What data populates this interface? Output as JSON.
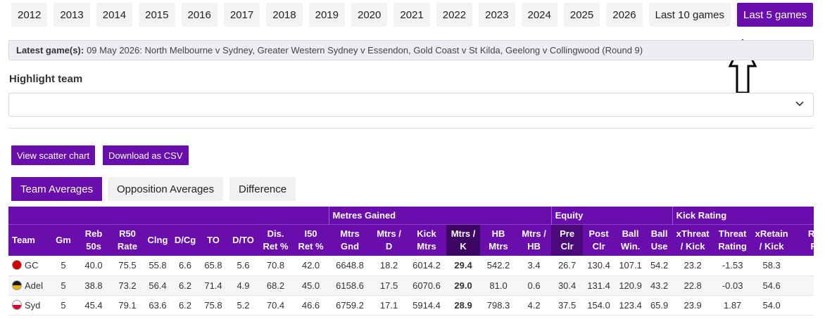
{
  "seasons": [
    "2012",
    "2013",
    "2014",
    "2015",
    "2016",
    "2017",
    "2018",
    "2019",
    "2020",
    "2021",
    "2022",
    "2023",
    "2024",
    "2025",
    "2026",
    "Last 10 games",
    "Last 5 games"
  ],
  "active_season": "Last 5 games",
  "latest": {
    "label": "Latest game(s):",
    "text": "09 May 2026: North Melbourne v Sydney, Greater Western Sydney v Essendon, Gold Coast v St Kilda, Geelong v Collingwood (Round 9)"
  },
  "highlight": {
    "label": "Highlight team",
    "value": ""
  },
  "actions": {
    "scatter": "View scatter chart",
    "csv": "Download as CSV"
  },
  "tabs": [
    "Team Averages",
    "Opposition Averages",
    "Difference"
  ],
  "active_tab": "Team Averages",
  "table": {
    "groups": {
      "metres_gained": "Metres Gained",
      "equity": "Equity",
      "kick_rating": "Kick Rating"
    },
    "columns": [
      [
        "Team",
        ""
      ],
      [
        "Gm",
        ""
      ],
      [
        "Reb",
        "50s"
      ],
      [
        "R50",
        "Rate"
      ],
      [
        "Clng",
        ""
      ],
      [
        "D/Cg",
        ""
      ],
      [
        "TO",
        ""
      ],
      [
        "D/TO",
        ""
      ],
      [
        "Dis.",
        "Ret %"
      ],
      [
        "I50",
        "Ret %"
      ],
      [
        "Mtrs",
        "Gnd"
      ],
      [
        "Mtrs /",
        "D"
      ],
      [
        "Kick",
        "Mtrs"
      ],
      [
        "Mtrs /",
        "K"
      ],
      [
        "HB",
        "Mtrs"
      ],
      [
        "Mtrs /",
        "HB"
      ],
      [
        "Pre",
        "Clr"
      ],
      [
        "Post",
        "Clr"
      ],
      [
        "Ball",
        "Win."
      ],
      [
        "Ball",
        "Use"
      ],
      [
        "xThreat",
        "/ Kick"
      ],
      [
        "Threat",
        "Rating"
      ],
      [
        "xRetain",
        "/ Kick"
      ],
      [
        "Re",
        "R"
      ]
    ],
    "rows": [
      {
        "team": "GC",
        "logo_colors": [
          "#d40000",
          "#d40000"
        ],
        "values": [
          "5",
          "40.0",
          "75.5",
          "55.8",
          "6.6",
          "65.8",
          "5.6",
          "70.8",
          "42.0",
          "6648.8",
          "18.2",
          "6014.2",
          "29.4",
          "542.2",
          "3.4",
          "26.7",
          "130.4",
          "107.1",
          "54.2",
          "23.2",
          "-1.53",
          "58.3",
          ""
        ]
      },
      {
        "team": "Adel",
        "logo_colors": [
          "#1a1a1a",
          "#e8b400"
        ],
        "values": [
          "5",
          "38.8",
          "73.2",
          "56.4",
          "6.2",
          "71.4",
          "4.9",
          "68.2",
          "45.0",
          "6158.6",
          "17.5",
          "6070.6",
          "29.0",
          "81.0",
          "0.6",
          "30.4",
          "131.4",
          "120.9",
          "43.2",
          "22.8",
          "-0.03",
          "54.6",
          ""
        ]
      },
      {
        "team": "Syd",
        "logo_colors": [
          "#ffffff",
          "#e4002b"
        ],
        "values": [
          "5",
          "45.4",
          "79.1",
          "63.6",
          "6.2",
          "75.8",
          "5.2",
          "70.4",
          "46.6",
          "6759.2",
          "17.1",
          "5914.4",
          "28.9",
          "798.3",
          "4.2",
          "37.5",
          "154.0",
          "123.4",
          "65.9",
          "23.9",
          "1.87",
          "54.0",
          ""
        ]
      }
    ]
  },
  "colors": {
    "accent": "#6a0dad",
    "sorted_header": "#3d0663"
  }
}
